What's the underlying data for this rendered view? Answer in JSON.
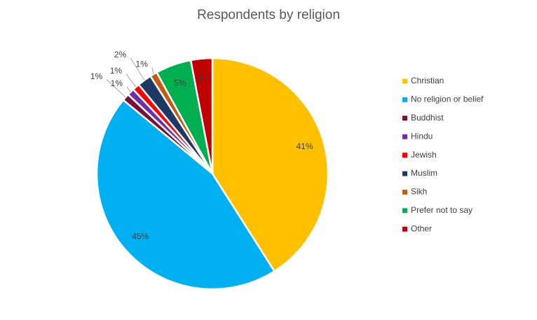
{
  "chart_data": {
    "type": "pie",
    "title": "Respondents by religion",
    "categories": [
      "Christian",
      "No religion or belief",
      "Buddhist",
      "Hindu",
      "Jewish",
      "Muslim",
      "Sikh",
      "Prefer not to say",
      "Other"
    ],
    "values": [
      41,
      45,
      1,
      1,
      1,
      2,
      1,
      5,
      3
    ],
    "value_labels": [
      "41%",
      "45%",
      "1%",
      "1%",
      "1%",
      "2%",
      "1%",
      "5%",
      "3%"
    ],
    "colors": [
      "#ffc000",
      "#00b0f0",
      "#7b0c3c",
      "#7030a0",
      "#ff0000",
      "#203864",
      "#c55a11",
      "#00b050",
      "#c00000"
    ],
    "legend": "right"
  }
}
